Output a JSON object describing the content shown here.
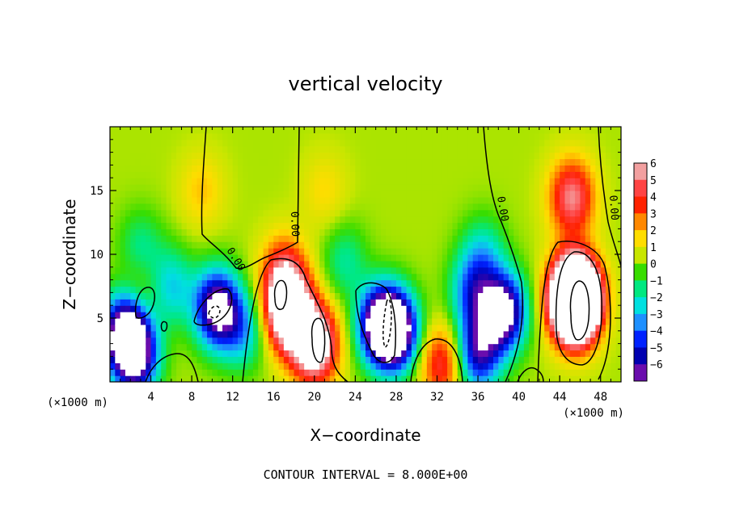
{
  "chart_data": {
    "type": "heatmap",
    "title": "vertical velocity",
    "xlabel": "X−coordinate",
    "ylabel": "Z−coordinate",
    "x_unit": "(×1000 m)",
    "xlim": [
      0,
      50
    ],
    "ylim": [
      0,
      20
    ],
    "x_ticks": [
      4,
      8,
      12,
      16,
      20,
      24,
      28,
      32,
      36,
      40,
      44,
      48
    ],
    "y_ticks": [
      5,
      10,
      15
    ],
    "colorbar": {
      "ticks": [
        6,
        5,
        4,
        3,
        2,
        1,
        0,
        -1,
        -2,
        -3,
        -4,
        -5,
        -6
      ],
      "tick_labels": [
        "6",
        "5",
        "4",
        "3",
        "2",
        "1",
        "0",
        "−1",
        "−2",
        "−3",
        "−4",
        "−5",
        "−6"
      ],
      "colors": [
        "#f2a0a0",
        "#ff4444",
        "#ff2200",
        "#ff8800",
        "#ffdd00",
        "#c8e600",
        "#38dd00",
        "#00e880",
        "#00e0e0",
        "#1e90ff",
        "#0022ff",
        "#0000b0",
        "#6a0dad"
      ]
    },
    "contour_interval_text": "CONTOUR INTERVAL = 8.000E+00",
    "contour_label": "0.00",
    "background_value": 0.8,
    "features": [
      {
        "x": 45.5,
        "z": 6.5,
        "value": 22,
        "desc": "strong updraft"
      },
      {
        "x": 45.2,
        "z": 14.5,
        "value": 5
      },
      {
        "x": 17.5,
        "z": 5.5,
        "value": 9
      },
      {
        "x": 20.0,
        "z": 3.0,
        "value": 8
      },
      {
        "x": 17.0,
        "z": 8.5,
        "value": 4
      },
      {
        "x": 32.5,
        "z": 1.5,
        "value": 4
      },
      {
        "x": 1.5,
        "z": 4.0,
        "value": -8
      },
      {
        "x": 2.5,
        "z": 2.0,
        "value": -7
      },
      {
        "x": 10.5,
        "z": 5.8,
        "value": -8
      },
      {
        "x": 26.5,
        "z": 4.5,
        "value": -8
      },
      {
        "x": 28.0,
        "z": 4.0,
        "value": -8
      },
      {
        "x": 38.5,
        "z": 5.5,
        "value": -8
      },
      {
        "x": 36.0,
        "z": 2.3,
        "value": -6
      },
      {
        "x": 35.5,
        "z": 7.0,
        "value": -4
      },
      {
        "x": 6.0,
        "z": 7.5,
        "value": -3
      },
      {
        "x": 13.0,
        "z": 4.0,
        "value": -3
      },
      {
        "x": 3.0,
        "z": 10.5,
        "value": -2
      },
      {
        "x": 23.0,
        "z": 9.5,
        "value": -2
      },
      {
        "x": 36.5,
        "z": 10.0,
        "value": -2.5
      },
      {
        "x": 3.0,
        "z": 7.0,
        "value": 1.5
      },
      {
        "x": 9.0,
        "z": 15.0,
        "value": 1.5
      },
      {
        "x": 21.0,
        "z": 15.0,
        "value": 1.2
      }
    ]
  }
}
